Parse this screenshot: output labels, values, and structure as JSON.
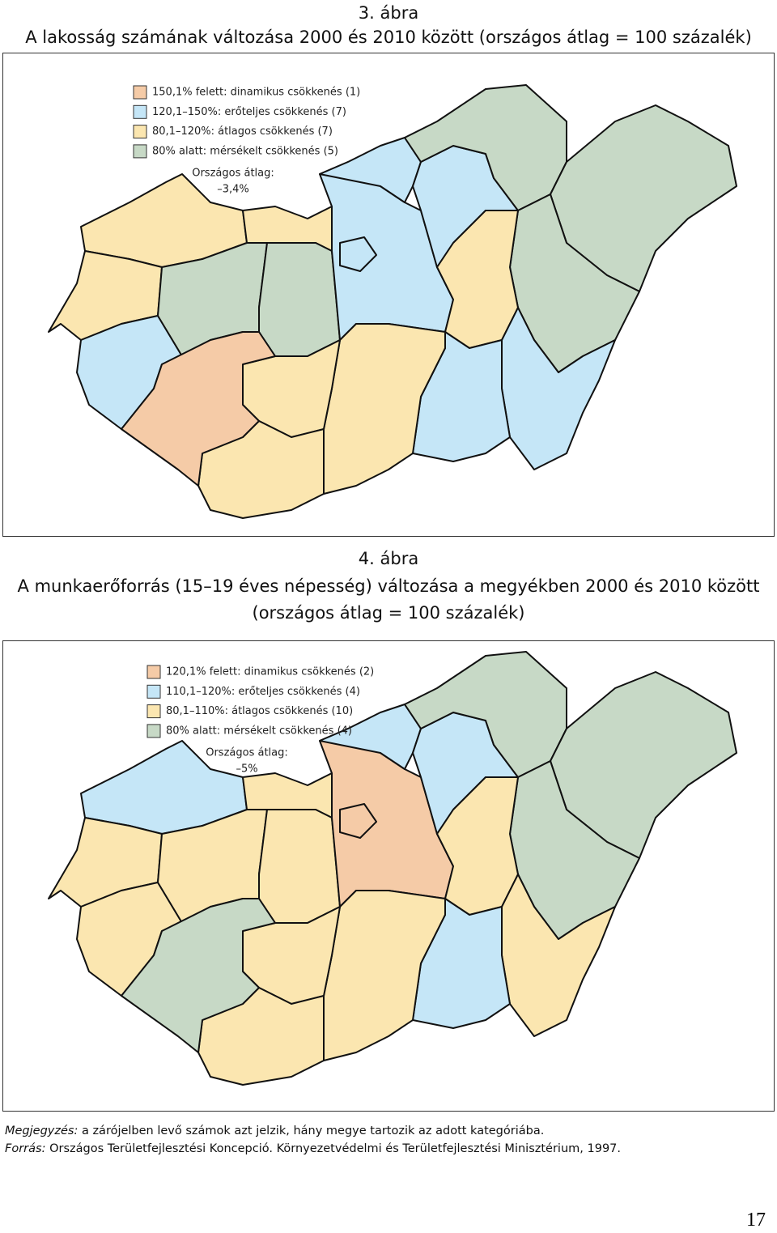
{
  "figures": [
    {
      "number": "3. ábra",
      "title": [
        "A lakosság számának változása 2000 és 2010 között (országos átlag = 100 százalék)"
      ],
      "legend": [
        "150,1% felett: dinamikus csökkenés (1)",
        "120,1–150%: erőteljes csökkenés (7)",
        "80,1–120%: átlagos csökkenés (7)",
        "80% alatt: mérsékelt csökkenés (5)"
      ],
      "average_label": "Országos átlag:",
      "average_value": "–3,4%"
    },
    {
      "number": "4. ábra",
      "title": [
        "A munkaerőforrás (15–19 éves népesség) változása a megyékben 2000 és 2010 között",
        "(országos átlag = 100 százalék)"
      ],
      "legend": [
        "120,1% felett: dinamikus csökkenés (2)",
        "110,1–120%: erőteljes csökkenés (4)",
        "80,1–110%: átlagos csökkenés (10)",
        "80% alatt: mérsékelt csökkenés (4)"
      ],
      "average_label": "Országos átlag:",
      "average_value": "–5%"
    }
  ],
  "note": {
    "label": "Megjegyzés:",
    "text": "a zárójelben levő számok azt jelzik, hány megye tartozik az adott kategóriába."
  },
  "source": {
    "label": "Forrás:",
    "text": "Országos Területfejlesztési Koncepció. Környezetvédelmi és Területfejlesztési Minisztérium, 1997."
  },
  "page_number": "17"
}
